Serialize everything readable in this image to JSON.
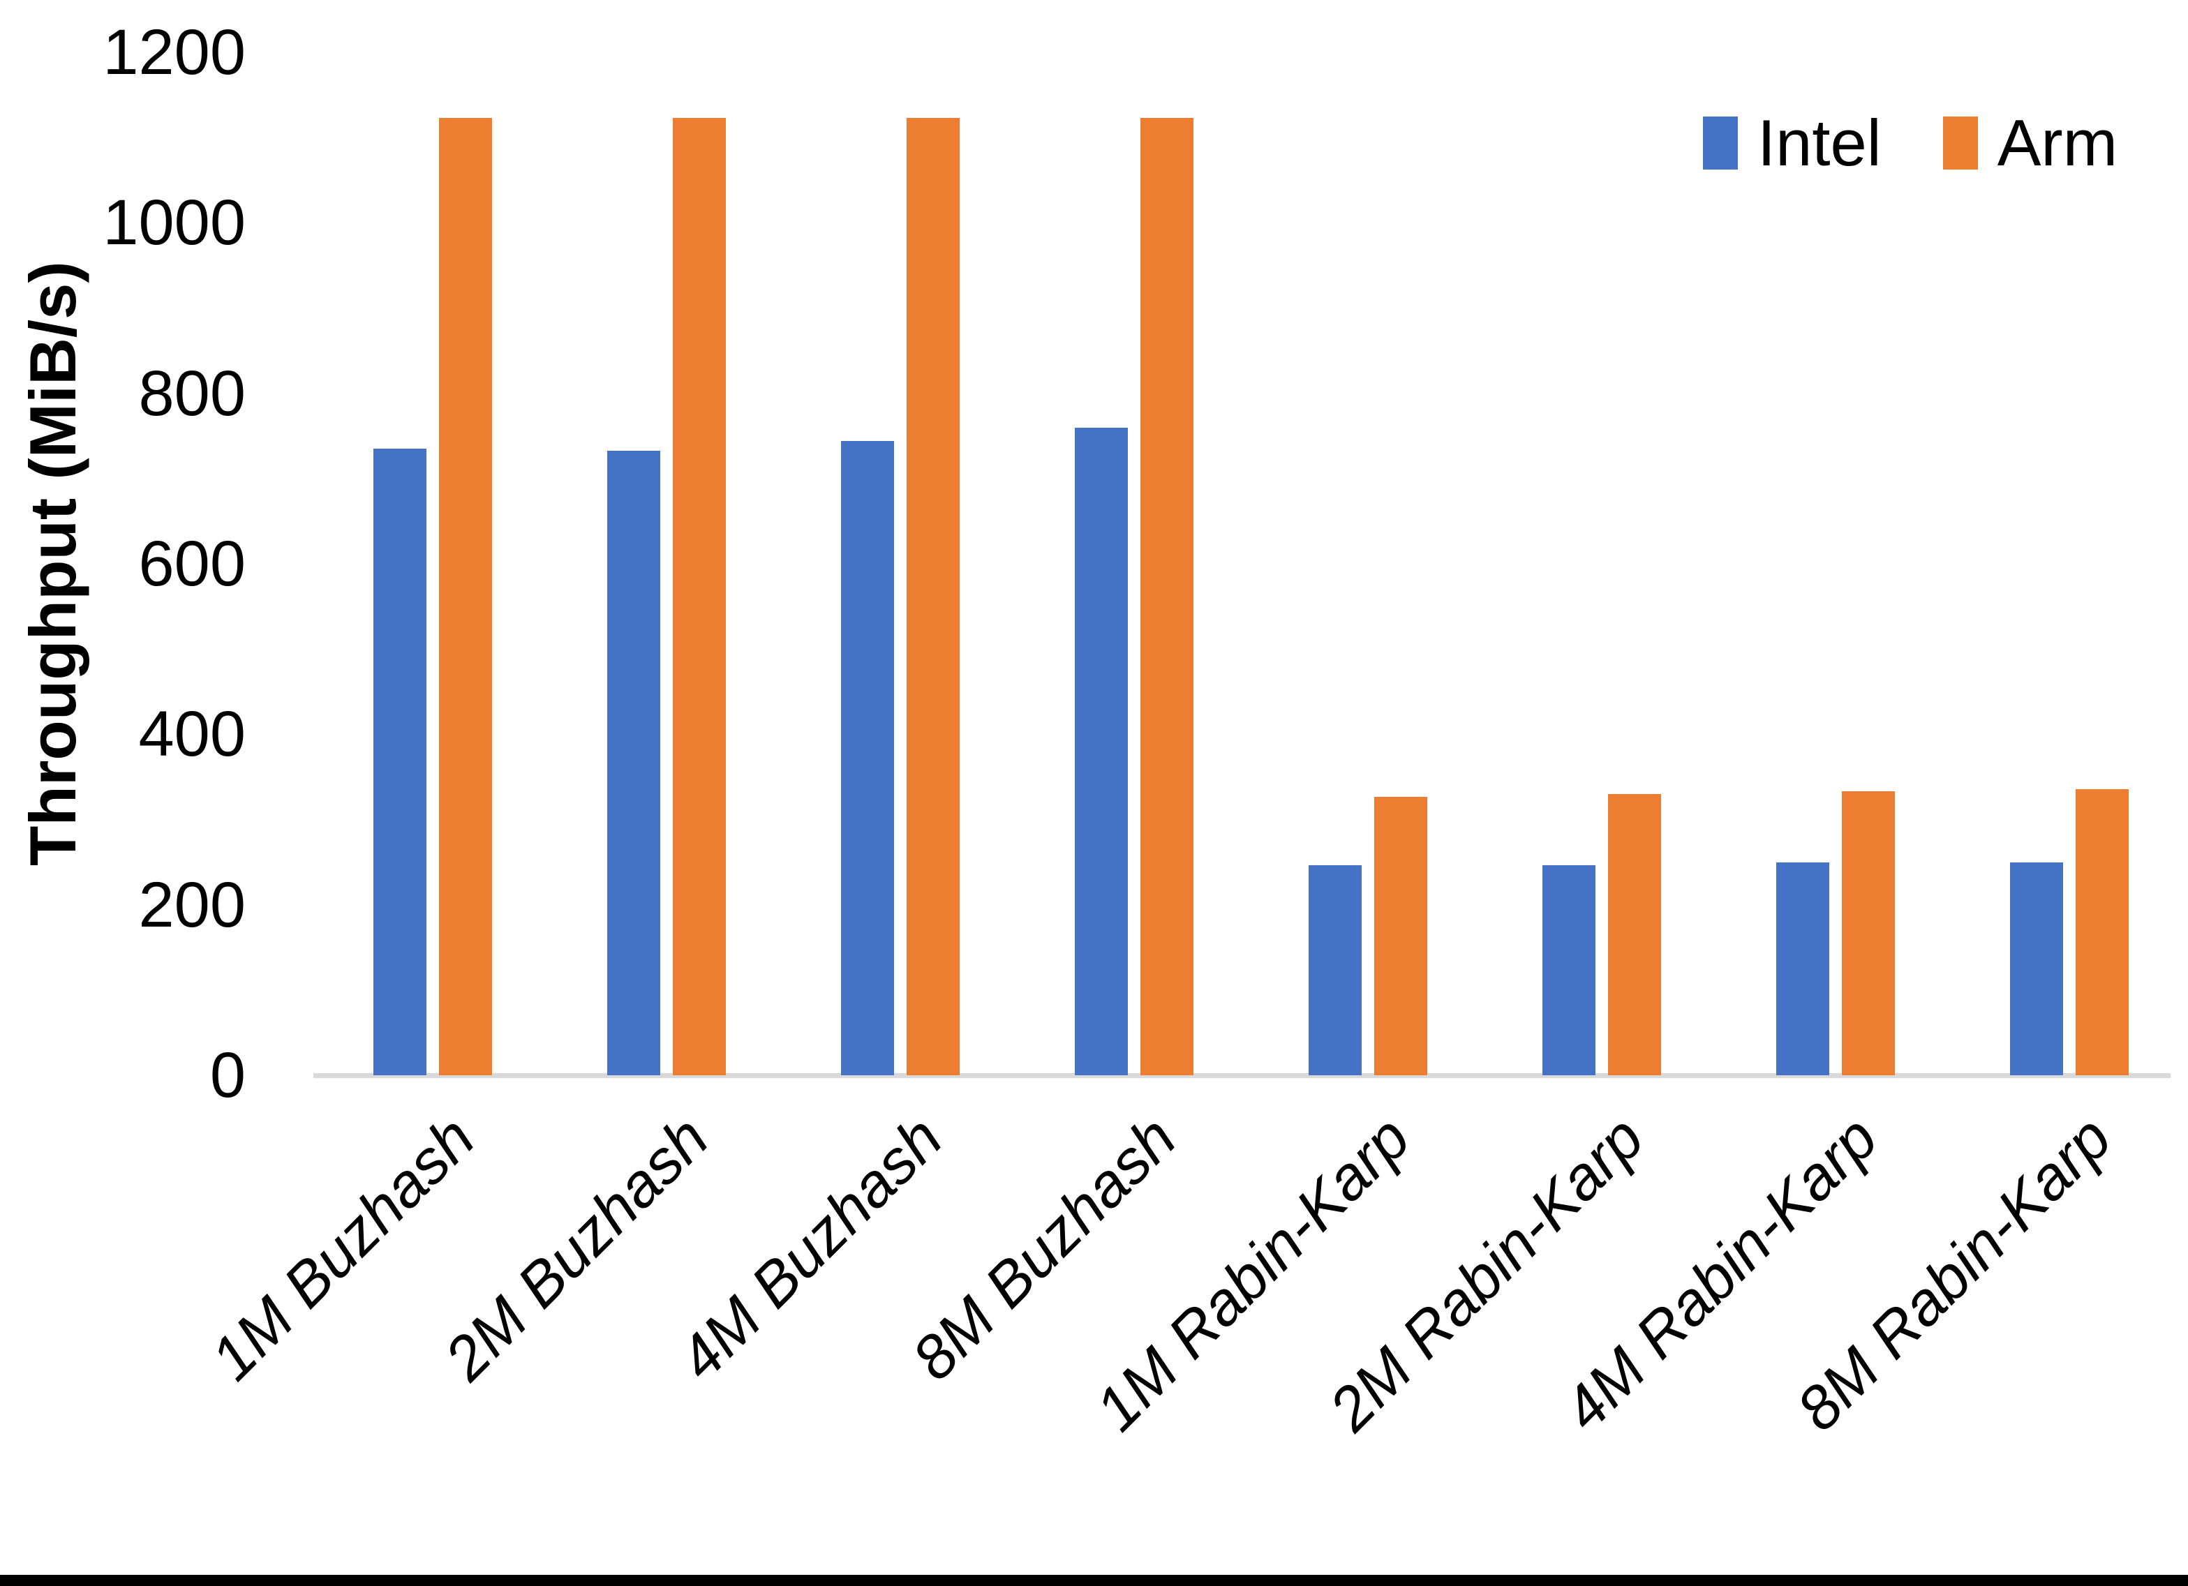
{
  "chart_data": {
    "type": "bar",
    "title": "",
    "xlabel": "",
    "ylabel": "Throughput (MiB/s)",
    "ylim": [
      0,
      1200
    ],
    "yticks": [
      0,
      200,
      400,
      600,
      800,
      1000,
      1200
    ],
    "grid": false,
    "legend_position": "top-right",
    "categories": [
      "1M Buzhash",
      "2M Buzhash",
      "4M Buzhash",
      "8M Buzhash",
      "1M Rabin-Karp",
      "2M Rabin-Karp",
      "4M Rabin-Karp",
      "8M Rabin-Karp"
    ],
    "series": [
      {
        "name": "Intel",
        "color": "#4472C4",
        "values": [
          735,
          733,
          744,
          760,
          246,
          246,
          250,
          250
        ]
      },
      {
        "name": "Arm",
        "color": "#ED7D31",
        "values": [
          1123,
          1123,
          1123,
          1123,
          327,
          330,
          333,
          336
        ]
      }
    ]
  },
  "colors": {
    "background": "#FFFFFF",
    "text": "#000000",
    "axis_line": "#D9D9D9",
    "bottom_border": "#000000"
  }
}
